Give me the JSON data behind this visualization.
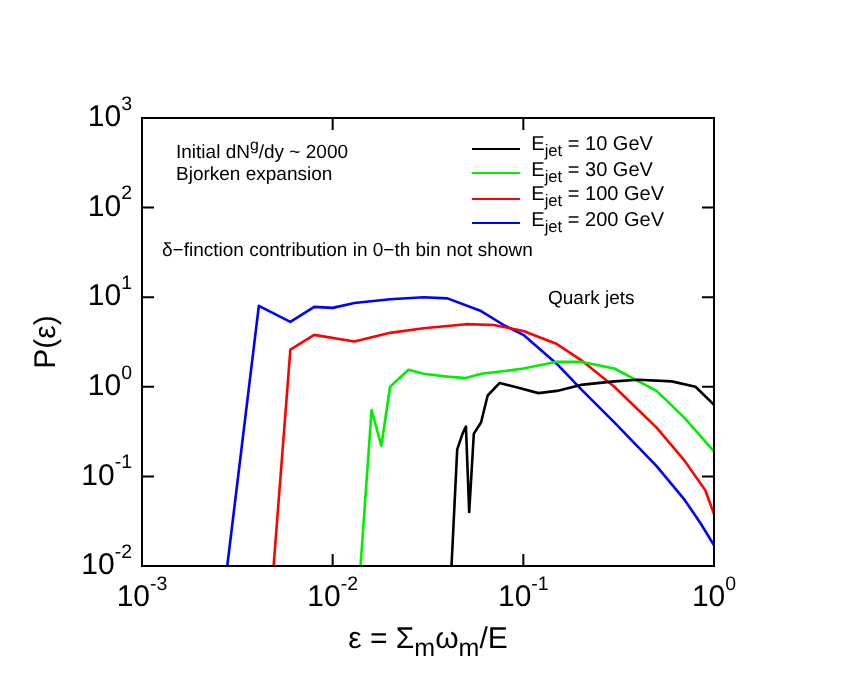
{
  "chart_data": {
    "type": "line",
    "xlabel": "ε = Σ$_{m}$ω$_{m}$/E",
    "ylabel": "P(ε)",
    "log": "xy",
    "legend": "top right",
    "grid": false,
    "marker": "none",
    "line_style": "solid",
    "xlim": [
      0.001,
      1
    ],
    "ylim": [
      0.01,
      1000
    ],
    "xticks": [
      {
        "value": 0.001,
        "label": "10$^{-3}$"
      },
      {
        "value": 0.01,
        "label": "10$^{-2}$"
      },
      {
        "value": 0.1,
        "label": "10$^{-1}$"
      },
      {
        "value": 1,
        "label": "10$^{0}$"
      }
    ],
    "yticks": [
      {
        "value": 0.01,
        "label": "10$^{-2}$"
      },
      {
        "value": 0.1,
        "label": "10$^{-1}$"
      },
      {
        "value": 1,
        "label": "10$^{0}$"
      },
      {
        "value": 10,
        "label": "10$^{1}$"
      },
      {
        "value": 100,
        "label": "10$^{2}$"
      },
      {
        "value": 1000,
        "label": "10$^{3}$"
      }
    ],
    "annotations": [
      "Initial dN$^{g}$/dy ~ 2000",
      "Bjorken expansion",
      "δ−finction contribution in 0−th bin not shown",
      "Quark jets"
    ],
    "series": [
      {
        "name": "E$_{jet}$ = 10 GeV",
        "color": "#000000",
        "x": [
          0.042,
          0.045,
          0.048,
          0.05,
          0.052,
          0.055,
          0.06,
          0.065,
          0.075,
          0.09,
          0.12,
          0.15,
          0.2,
          0.3,
          0.4,
          0.6,
          0.8,
          1.0
        ],
        "values": [
          0.01,
          0.2,
          0.3,
          0.36,
          0.04,
          0.3,
          0.4,
          0.8,
          1.1,
          1.0,
          0.85,
          0.9,
          1.05,
          1.15,
          1.2,
          1.15,
          1.0,
          0.63
        ]
      },
      {
        "name": "E$_{jet}$ = 30 GeV",
        "color": "#00ee00",
        "x": [
          0.014,
          0.016,
          0.018,
          0.02,
          0.025,
          0.03,
          0.04,
          0.05,
          0.06,
          0.08,
          0.1,
          0.15,
          0.2,
          0.3,
          0.5,
          0.7,
          1.0
        ],
        "values": [
          0.01,
          0.55,
          0.22,
          1.0,
          1.55,
          1.4,
          1.3,
          1.25,
          1.4,
          1.5,
          1.6,
          1.9,
          1.9,
          1.6,
          0.9,
          0.45,
          0.19
        ]
      },
      {
        "name": "E$_{jet}$ = 100 GeV",
        "color": "#ff0000",
        "x": [
          0.0049,
          0.006,
          0.008,
          0.013,
          0.02,
          0.03,
          0.05,
          0.07,
          0.1,
          0.15,
          0.2,
          0.3,
          0.5,
          0.7,
          0.9,
          1.0
        ],
        "values": [
          0.01,
          2.6,
          3.8,
          3.2,
          4.0,
          4.5,
          5.0,
          4.9,
          4.2,
          3.0,
          2.0,
          1.0,
          0.35,
          0.15,
          0.07,
          0.038
        ]
      },
      {
        "name": "E$_{jet}$ = 200 GeV",
        "color": "#0000ff",
        "x": [
          0.0028,
          0.0041,
          0.006,
          0.008,
          0.01,
          0.013,
          0.02,
          0.03,
          0.04,
          0.06,
          0.08,
          0.1,
          0.15,
          0.2,
          0.3,
          0.5,
          0.7,
          0.85,
          1.0
        ],
        "values": [
          0.01,
          8,
          5.3,
          7.8,
          7.6,
          8.6,
          9.5,
          10,
          9.7,
          7,
          4.8,
          3.8,
          1.8,
          0.95,
          0.4,
          0.13,
          0.055,
          0.03,
          0.017
        ]
      }
    ]
  }
}
